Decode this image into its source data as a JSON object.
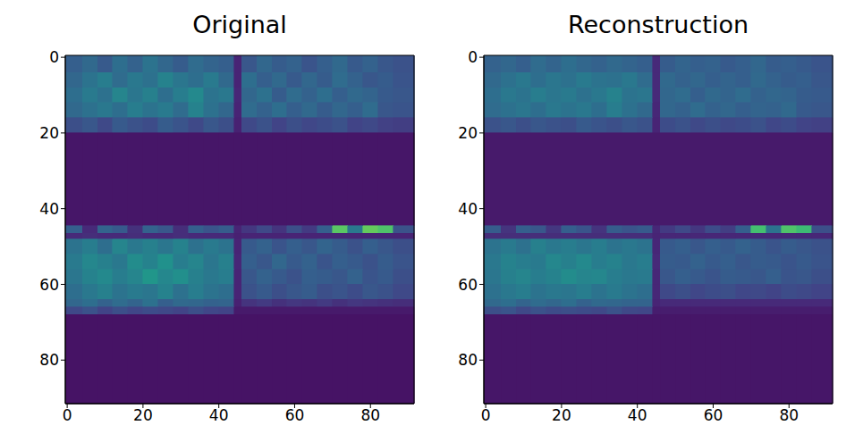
{
  "chart_data": [
    {
      "type": "heatmap",
      "title": "Original",
      "xlim": [
        -0.5,
        91.5
      ],
      "ylim": [
        91.5,
        -0.5
      ],
      "xticks": [
        0,
        20,
        40,
        60,
        80
      ],
      "yticks": [
        0,
        20,
        40,
        60,
        80
      ],
      "zlim": [
        0,
        1
      ],
      "x_edges": [
        -0.5,
        4,
        8,
        12,
        16,
        20,
        24,
        28,
        32,
        36,
        40,
        44,
        46,
        50,
        54,
        58,
        62,
        66,
        70,
        74,
        78,
        82,
        86,
        91.5
      ],
      "y_edges": [
        -0.5,
        4,
        8,
        12,
        16,
        20,
        44.5,
        46.5,
        48,
        52,
        56,
        60,
        64,
        66,
        68,
        91.5
      ],
      "cells": [
        [
          0.3,
          0.34,
          0.28,
          0.36,
          0.31,
          0.38,
          0.33,
          0.29,
          0.35,
          0.32,
          0.3,
          0.1,
          0.27,
          0.33,
          0.29,
          0.31,
          0.26,
          0.3,
          0.34,
          0.28,
          0.31,
          0.27,
          0.25
        ],
        [
          0.33,
          0.38,
          0.42,
          0.35,
          0.4,
          0.37,
          0.44,
          0.39,
          0.36,
          0.41,
          0.34,
          0.1,
          0.36,
          0.3,
          0.34,
          0.28,
          0.33,
          0.29,
          0.35,
          0.31,
          0.27,
          0.29,
          0.26
        ],
        [
          0.36,
          0.41,
          0.37,
          0.45,
          0.39,
          0.43,
          0.36,
          0.42,
          0.47,
          0.38,
          0.4,
          0.11,
          0.33,
          0.37,
          0.29,
          0.35,
          0.31,
          0.36,
          0.3,
          0.34,
          0.32,
          0.28,
          0.27
        ],
        [
          0.34,
          0.37,
          0.4,
          0.36,
          0.42,
          0.38,
          0.41,
          0.35,
          0.44,
          0.37,
          0.33,
          0.1,
          0.35,
          0.31,
          0.36,
          0.3,
          0.34,
          0.29,
          0.33,
          0.3,
          0.35,
          0.27,
          0.26
        ],
        [
          0.24,
          0.27,
          0.22,
          0.28,
          0.25,
          0.23,
          0.29,
          0.26,
          0.22,
          0.27,
          0.24,
          0.09,
          0.22,
          0.25,
          0.2,
          0.24,
          0.21,
          0.23,
          0.25,
          0.2,
          0.22,
          0.19,
          0.18
        ],
        [
          0.06,
          0.06,
          0.06,
          0.06,
          0.06,
          0.06,
          0.06,
          0.06,
          0.06,
          0.06,
          0.06,
          0.06,
          0.06,
          0.06,
          0.06,
          0.06,
          0.06,
          0.06,
          0.06,
          0.06,
          0.06,
          0.06,
          0.06
        ],
        [
          0.3,
          0.12,
          0.32,
          0.28,
          0.14,
          0.31,
          0.27,
          0.13,
          0.3,
          0.26,
          0.29,
          0.1,
          0.16,
          0.22,
          0.15,
          0.24,
          0.17,
          0.3,
          0.74,
          0.4,
          0.76,
          0.72,
          0.25
        ],
        [
          0.12,
          0.13,
          0.12,
          0.12,
          0.13,
          0.12,
          0.12,
          0.13,
          0.12,
          0.12,
          0.12,
          0.09,
          0.1,
          0.1,
          0.1,
          0.1,
          0.1,
          0.1,
          0.1,
          0.1,
          0.1,
          0.1,
          0.1
        ],
        [
          0.38,
          0.42,
          0.36,
          0.45,
          0.4,
          0.43,
          0.39,
          0.44,
          0.37,
          0.41,
          0.38,
          0.1,
          0.28,
          0.31,
          0.26,
          0.3,
          0.27,
          0.32,
          0.29,
          0.25,
          0.3,
          0.27,
          0.24
        ],
        [
          0.41,
          0.46,
          0.43,
          0.4,
          0.48,
          0.44,
          0.5,
          0.42,
          0.45,
          0.39,
          0.43,
          0.11,
          0.3,
          0.27,
          0.33,
          0.28,
          0.31,
          0.26,
          0.3,
          0.28,
          0.25,
          0.29,
          0.26
        ],
        [
          0.39,
          0.44,
          0.47,
          0.42,
          0.45,
          0.52,
          0.46,
          0.49,
          0.43,
          0.4,
          0.42,
          0.1,
          0.27,
          0.31,
          0.28,
          0.25,
          0.3,
          0.29,
          0.27,
          0.31,
          0.26,
          0.28,
          0.24
        ],
        [
          0.36,
          0.4,
          0.43,
          0.38,
          0.41,
          0.39,
          0.44,
          0.37,
          0.42,
          0.38,
          0.36,
          0.1,
          0.25,
          0.28,
          0.24,
          0.27,
          0.29,
          0.24,
          0.26,
          0.23,
          0.27,
          0.25,
          0.22
        ],
        [
          0.33,
          0.36,
          0.31,
          0.35,
          0.32,
          0.37,
          0.3,
          0.34,
          0.33,
          0.31,
          0.32,
          0.09,
          0.15,
          0.17,
          0.14,
          0.16,
          0.15,
          0.17,
          0.14,
          0.16,
          0.15,
          0.14,
          0.13
        ],
        [
          0.22,
          0.25,
          0.2,
          0.24,
          0.21,
          0.23,
          0.22,
          0.2,
          0.24,
          0.21,
          0.2,
          0.07,
          0.07,
          0.07,
          0.07,
          0.07,
          0.07,
          0.07,
          0.07,
          0.07,
          0.07,
          0.07,
          0.07
        ],
        [
          0.05,
          0.05,
          0.05,
          0.05,
          0.05,
          0.05,
          0.05,
          0.05,
          0.05,
          0.05,
          0.05,
          0.05,
          0.05,
          0.05,
          0.05,
          0.05,
          0.05,
          0.05,
          0.05,
          0.05,
          0.05,
          0.05,
          0.05
        ]
      ]
    },
    {
      "type": "heatmap",
      "title": "Reconstruction",
      "xlim": [
        -0.5,
        91.5
      ],
      "ylim": [
        91.5,
        -0.5
      ],
      "xticks": [
        0,
        20,
        40,
        60,
        80
      ],
      "yticks": [
        0,
        20,
        40,
        60,
        80
      ],
      "zlim": [
        0,
        1
      ],
      "x_edges": [
        -0.5,
        4,
        8,
        12,
        16,
        20,
        24,
        28,
        32,
        36,
        40,
        44,
        46,
        50,
        54,
        58,
        62,
        66,
        70,
        74,
        78,
        82,
        86,
        91.5
      ],
      "y_edges": [
        -0.5,
        4,
        8,
        12,
        16,
        20,
        44.5,
        46.5,
        48,
        52,
        56,
        60,
        64,
        66,
        68,
        91.5
      ],
      "cells": [
        [
          0.31,
          0.33,
          0.3,
          0.35,
          0.32,
          0.36,
          0.33,
          0.31,
          0.34,
          0.32,
          0.3,
          0.12,
          0.29,
          0.32,
          0.3,
          0.31,
          0.28,
          0.3,
          0.33,
          0.29,
          0.3,
          0.28,
          0.26
        ],
        [
          0.34,
          0.37,
          0.4,
          0.36,
          0.39,
          0.37,
          0.41,
          0.38,
          0.37,
          0.4,
          0.35,
          0.12,
          0.34,
          0.31,
          0.33,
          0.3,
          0.32,
          0.3,
          0.34,
          0.31,
          0.29,
          0.3,
          0.27
        ],
        [
          0.36,
          0.4,
          0.38,
          0.42,
          0.39,
          0.41,
          0.37,
          0.4,
          0.44,
          0.38,
          0.39,
          0.12,
          0.33,
          0.35,
          0.3,
          0.34,
          0.32,
          0.35,
          0.31,
          0.33,
          0.32,
          0.29,
          0.28
        ],
        [
          0.35,
          0.37,
          0.39,
          0.36,
          0.4,
          0.38,
          0.4,
          0.36,
          0.42,
          0.37,
          0.34,
          0.11,
          0.33,
          0.31,
          0.35,
          0.31,
          0.33,
          0.3,
          0.32,
          0.31,
          0.34,
          0.28,
          0.27
        ],
        [
          0.25,
          0.27,
          0.24,
          0.27,
          0.25,
          0.24,
          0.28,
          0.26,
          0.24,
          0.27,
          0.25,
          0.1,
          0.23,
          0.25,
          0.22,
          0.24,
          0.22,
          0.23,
          0.25,
          0.21,
          0.23,
          0.2,
          0.19
        ],
        [
          0.07,
          0.07,
          0.07,
          0.07,
          0.07,
          0.07,
          0.07,
          0.07,
          0.07,
          0.07,
          0.07,
          0.07,
          0.07,
          0.07,
          0.07,
          0.07,
          0.07,
          0.07,
          0.07,
          0.07,
          0.07,
          0.07,
          0.07
        ],
        [
          0.29,
          0.15,
          0.3,
          0.27,
          0.16,
          0.3,
          0.26,
          0.15,
          0.29,
          0.26,
          0.28,
          0.11,
          0.17,
          0.22,
          0.16,
          0.23,
          0.18,
          0.3,
          0.7,
          0.38,
          0.72,
          0.68,
          0.24
        ],
        [
          0.13,
          0.13,
          0.13,
          0.13,
          0.13,
          0.13,
          0.13,
          0.13,
          0.13,
          0.13,
          0.13,
          0.1,
          0.11,
          0.11,
          0.11,
          0.11,
          0.11,
          0.11,
          0.11,
          0.11,
          0.11,
          0.11,
          0.11
        ],
        [
          0.38,
          0.41,
          0.37,
          0.43,
          0.4,
          0.42,
          0.39,
          0.42,
          0.38,
          0.4,
          0.38,
          0.11,
          0.28,
          0.3,
          0.27,
          0.3,
          0.28,
          0.31,
          0.29,
          0.26,
          0.29,
          0.27,
          0.25
        ],
        [
          0.4,
          0.44,
          0.42,
          0.41,
          0.46,
          0.43,
          0.47,
          0.42,
          0.44,
          0.4,
          0.42,
          0.12,
          0.29,
          0.28,
          0.31,
          0.28,
          0.3,
          0.27,
          0.29,
          0.28,
          0.26,
          0.28,
          0.26
        ],
        [
          0.39,
          0.43,
          0.45,
          0.42,
          0.44,
          0.48,
          0.45,
          0.46,
          0.42,
          0.4,
          0.41,
          0.11,
          0.27,
          0.3,
          0.28,
          0.26,
          0.29,
          0.28,
          0.27,
          0.3,
          0.26,
          0.27,
          0.24
        ],
        [
          0.37,
          0.4,
          0.42,
          0.38,
          0.4,
          0.39,
          0.42,
          0.38,
          0.41,
          0.38,
          0.36,
          0.11,
          0.22,
          0.24,
          0.21,
          0.23,
          0.24,
          0.21,
          0.22,
          0.2,
          0.23,
          0.22,
          0.2
        ],
        [
          0.34,
          0.36,
          0.32,
          0.35,
          0.33,
          0.36,
          0.31,
          0.34,
          0.33,
          0.32,
          0.32,
          0.1,
          0.12,
          0.12,
          0.12,
          0.12,
          0.12,
          0.12,
          0.12,
          0.12,
          0.12,
          0.12,
          0.12
        ],
        [
          0.24,
          0.26,
          0.22,
          0.25,
          0.23,
          0.24,
          0.23,
          0.22,
          0.25,
          0.22,
          0.21,
          0.08,
          0.08,
          0.08,
          0.08,
          0.08,
          0.08,
          0.08,
          0.08,
          0.08,
          0.08,
          0.08,
          0.08
        ],
        [
          0.06,
          0.06,
          0.06,
          0.06,
          0.06,
          0.06,
          0.06,
          0.06,
          0.06,
          0.06,
          0.06,
          0.06,
          0.06,
          0.06,
          0.06,
          0.06,
          0.06,
          0.06,
          0.06,
          0.06,
          0.06,
          0.06,
          0.06
        ]
      ]
    }
  ]
}
